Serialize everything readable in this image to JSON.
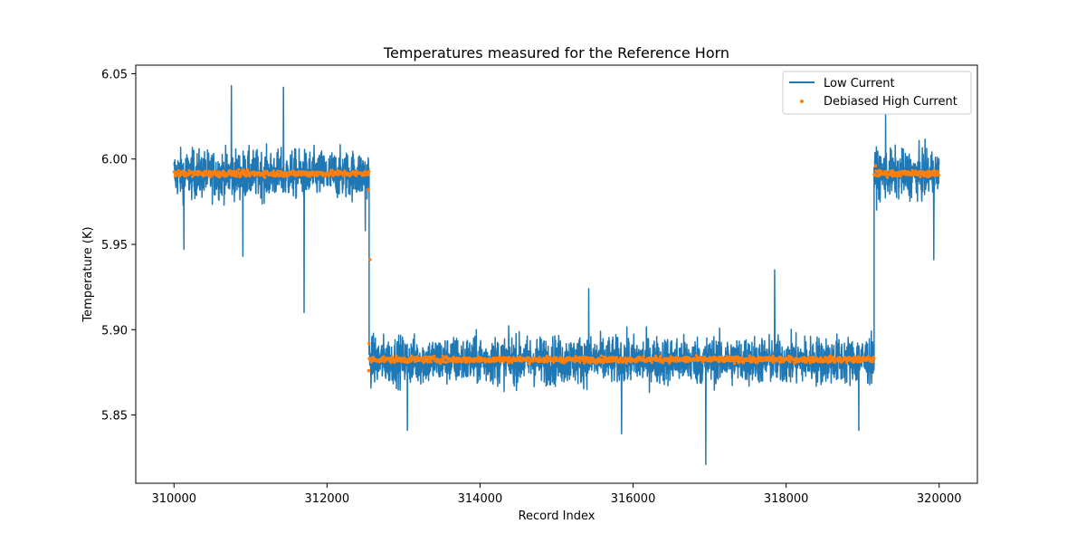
{
  "chart_data": {
    "type": "line",
    "title": "Temperatures measured for the Reference Horn",
    "xlabel": "Record Index",
    "ylabel": "Temperature (K)",
    "xlim": [
      309500,
      320500
    ],
    "ylim": [
      5.81,
      6.055
    ],
    "x_ticks": [
      310000,
      312000,
      314000,
      316000,
      318000,
      320000
    ],
    "x_tick_labels": [
      "310000",
      "312000",
      "314000",
      "316000",
      "318000",
      "320000"
    ],
    "y_ticks": [
      5.85,
      5.9,
      5.95,
      6.0,
      6.05
    ],
    "y_tick_labels": [
      "5.85",
      "5.90",
      "5.95",
      "6.00",
      "6.05"
    ],
    "legend_position": "upper-right",
    "series": [
      {
        "name": "Low Current",
        "kind": "line",
        "color": "#1f77b4",
        "segments": [
          {
            "x_start": 310000,
            "x_end": 312550,
            "mean": 5.991,
            "band_low": 5.966,
            "band_high": 6.016
          },
          {
            "x_start": 312550,
            "x_end": 319150,
            "mean": 5.882,
            "band_low": 5.857,
            "band_high": 5.907
          },
          {
            "x_start": 319150,
            "x_end": 320000,
            "mean": 5.991,
            "band_low": 5.966,
            "band_high": 6.016
          }
        ],
        "spikes": [
          {
            "x": 310750,
            "y": 6.043
          },
          {
            "x": 311430,
            "y": 6.042
          },
          {
            "x": 311700,
            "y": 5.91
          },
          {
            "x": 310900,
            "y": 5.943
          },
          {
            "x": 310130,
            "y": 5.947
          },
          {
            "x": 312500,
            "y": 5.958
          },
          {
            "x": 319300,
            "y": 6.026
          },
          {
            "x": 319930,
            "y": 5.941
          },
          {
            "x": 316950,
            "y": 5.821
          },
          {
            "x": 317850,
            "y": 5.935
          },
          {
            "x": 315420,
            "y": 5.924
          },
          {
            "x": 315850,
            "y": 5.839
          },
          {
            "x": 313050,
            "y": 5.841
          },
          {
            "x": 318950,
            "y": 5.841
          }
        ]
      },
      {
        "name": "Debiased High Current",
        "kind": "scatter",
        "color": "#ff7f0e",
        "segments": [
          {
            "x_start": 310000,
            "x_end": 312550,
            "mean": 5.9915,
            "spread": 0.0022
          },
          {
            "x_start": 312550,
            "x_end": 319150,
            "mean": 5.8825,
            "spread": 0.0022
          },
          {
            "x_start": 319150,
            "x_end": 320000,
            "mean": 5.9915,
            "spread": 0.0022
          }
        ],
        "outliers": [
          {
            "x": 312560,
            "y": 5.941
          },
          {
            "x": 312550,
            "y": 5.892
          },
          {
            "x": 312540,
            "y": 5.982
          },
          {
            "x": 312545,
            "y": 5.876
          },
          {
            "x": 319170,
            "y": 5.996
          }
        ]
      }
    ]
  }
}
